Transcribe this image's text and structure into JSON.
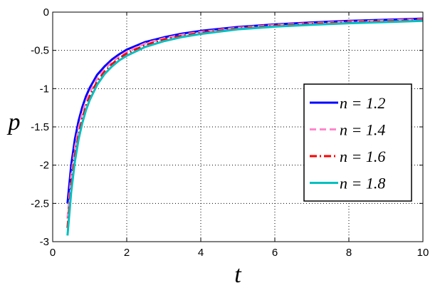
{
  "chart_data": {
    "type": "line",
    "xlabel": "t",
    "ylabel": "p",
    "xlim": [
      0,
      10
    ],
    "ylim": [
      -3,
      0
    ],
    "grid": true,
    "grid_style": "dotted",
    "legend_placement": "right",
    "x_ticks": [
      0,
      2,
      4,
      6,
      8,
      10
    ],
    "x_tick_labels": [
      "0",
      "2",
      "4",
      "6",
      "8",
      "10"
    ],
    "y_ticks": [
      -3,
      -2.5,
      -2,
      -1.5,
      -1,
      -0.5,
      0
    ],
    "y_tick_labels": [
      "-3",
      "-2.5",
      "-2",
      "-1.5",
      "-1",
      "-0.5",
      "0"
    ],
    "x": [
      0.4,
      0.5,
      0.6,
      0.7,
      0.8,
      0.9,
      1.0,
      1.2,
      1.4,
      1.6,
      1.8,
      2.0,
      2.5,
      3.0,
      3.5,
      4.0,
      5.0,
      6.0,
      7.0,
      8.0,
      9.0,
      10.0
    ],
    "series": [
      {
        "name": "n = 1.2",
        "color": "#0000ff",
        "dash": "solid",
        "values": [
          -2.5,
          -2.0,
          -1.66,
          -1.42,
          -1.24,
          -1.1,
          -0.99,
          -0.82,
          -0.71,
          -0.62,
          -0.55,
          -0.49,
          -0.39,
          -0.33,
          -0.28,
          -0.245,
          -0.195,
          -0.16,
          -0.135,
          -0.115,
          -0.1,
          -0.085
        ]
      },
      {
        "name": "n = 1.4",
        "color": "#ff88cc",
        "dash": "dashed",
        "values": [
          -2.7,
          -2.15,
          -1.78,
          -1.52,
          -1.32,
          -1.17,
          -1.05,
          -0.87,
          -0.75,
          -0.65,
          -0.58,
          -0.52,
          -0.41,
          -0.345,
          -0.295,
          -0.26,
          -0.205,
          -0.17,
          -0.145,
          -0.125,
          -0.11,
          -0.095
        ]
      },
      {
        "name": "n = 1.6",
        "color": "#ff0000",
        "dash": "dashdot",
        "values": [
          -2.82,
          -2.26,
          -1.87,
          -1.6,
          -1.39,
          -1.23,
          -1.1,
          -0.91,
          -0.78,
          -0.68,
          -0.6,
          -0.54,
          -0.43,
          -0.36,
          -0.31,
          -0.27,
          -0.215,
          -0.18,
          -0.155,
          -0.135,
          -0.12,
          -0.105
        ]
      },
      {
        "name": "n = 1.8",
        "color": "#00c0c0",
        "dash": "solid",
        "values": [
          -2.92,
          -2.35,
          -1.95,
          -1.66,
          -1.45,
          -1.28,
          -1.15,
          -0.95,
          -0.81,
          -0.71,
          -0.63,
          -0.57,
          -0.455,
          -0.38,
          -0.325,
          -0.285,
          -0.225,
          -0.19,
          -0.165,
          -0.145,
          -0.13,
          -0.115
        ]
      }
    ]
  }
}
